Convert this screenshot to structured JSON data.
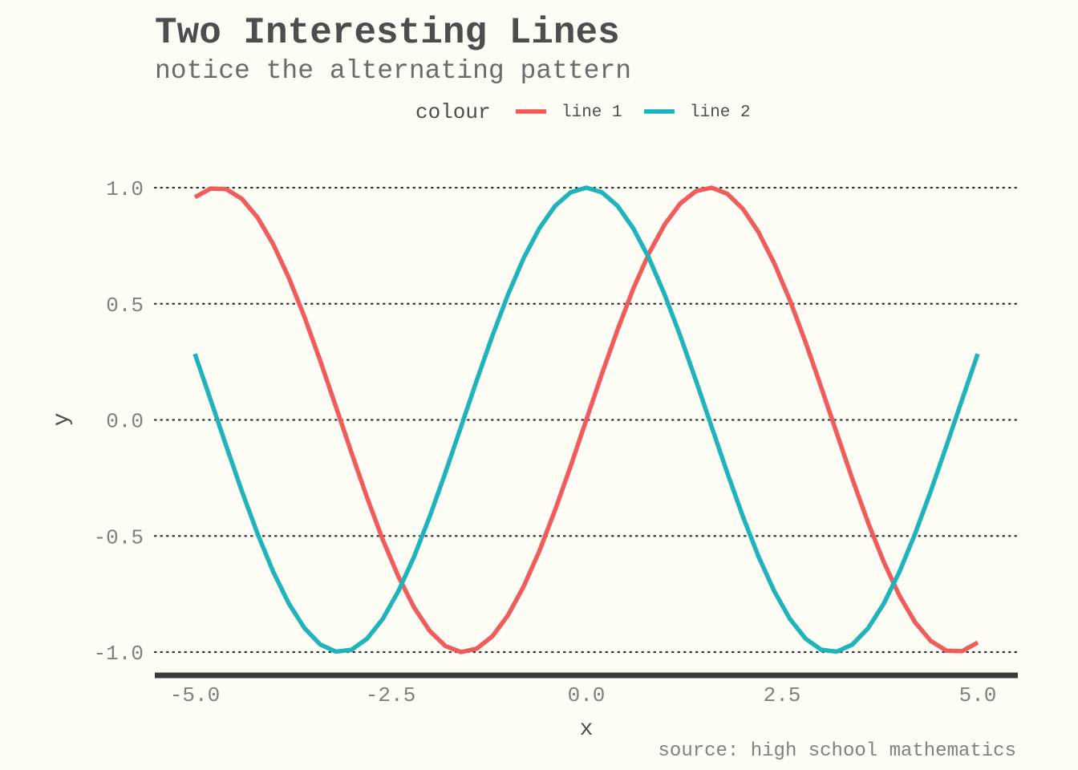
{
  "chart_data": {
    "type": "line",
    "title": "Two Interesting Lines",
    "subtitle": "notice the alternating pattern",
    "caption": "source: high school mathematics",
    "xlabel": "x",
    "ylabel": "y",
    "xlim": [
      -5,
      5
    ],
    "ylim": [
      -1,
      1
    ],
    "x_ticks": [
      -5,
      -2.5,
      0,
      2.5,
      5
    ],
    "x_tick_labels": [
      "-5.0",
      "-2.5",
      "0.0",
      "2.5",
      "5.0"
    ],
    "y_ticks": [
      -1,
      -0.5,
      0,
      0.5,
      1
    ],
    "y_tick_labels": [
      "-1.0",
      "-0.5",
      "0.0",
      "0.5",
      "1.0"
    ],
    "grid": "horizontal dotted",
    "legend": {
      "title": "colour",
      "position": "top",
      "entries": [
        "line 1",
        "line 2"
      ]
    },
    "x": [
      -5.0,
      -4.8,
      -4.6,
      -4.4,
      -4.2,
      -4.0,
      -3.8,
      -3.6,
      -3.4,
      -3.2,
      -3.0,
      -2.8,
      -2.6,
      -2.4,
      -2.2,
      -2.0,
      -1.8,
      -1.6,
      -1.4,
      -1.2,
      -1.0,
      -0.8,
      -0.6,
      -0.4,
      -0.2,
      0.0,
      0.2,
      0.4,
      0.6,
      0.8,
      1.0,
      1.2,
      1.4,
      1.6,
      1.8,
      2.0,
      2.2,
      2.4,
      2.6,
      2.8,
      3.0,
      3.2,
      3.4,
      3.6,
      3.8,
      4.0,
      4.2,
      4.4,
      4.6,
      4.8,
      5.0
    ],
    "series": [
      {
        "name": "line 1",
        "color": "#f05c5c",
        "values": [
          0.959,
          0.996,
          0.994,
          0.952,
          0.872,
          0.757,
          0.612,
          0.443,
          0.256,
          0.058,
          -0.141,
          -0.335,
          -0.516,
          -0.675,
          -0.808,
          -0.909,
          -0.974,
          -1.0,
          -0.985,
          -0.932,
          -0.841,
          -0.717,
          -0.565,
          -0.389,
          -0.199,
          0.0,
          0.199,
          0.389,
          0.565,
          0.717,
          0.841,
          0.932,
          0.985,
          1.0,
          0.974,
          0.909,
          0.808,
          0.675,
          0.516,
          0.335,
          0.141,
          -0.058,
          -0.256,
          -0.443,
          -0.612,
          -0.757,
          -0.872,
          -0.952,
          -0.994,
          -0.996,
          -0.959
        ]
      },
      {
        "name": "line 2",
        "color": "#1fb3bb",
        "values": [
          0.284,
          0.087,
          -0.112,
          -0.307,
          -0.49,
          -0.654,
          -0.791,
          -0.897,
          -0.967,
          -0.998,
          -0.99,
          -0.942,
          -0.857,
          -0.737,
          -0.589,
          -0.416,
          -0.227,
          -0.029,
          0.17,
          0.362,
          0.54,
          0.697,
          0.825,
          0.921,
          0.98,
          1.0,
          0.98,
          0.921,
          0.825,
          0.697,
          0.54,
          0.362,
          0.17,
          -0.029,
          -0.227,
          -0.416,
          -0.589,
          -0.737,
          -0.857,
          -0.942,
          -0.99,
          -0.998,
          -0.967,
          -0.897,
          -0.791,
          -0.654,
          -0.49,
          -0.307,
          -0.112,
          0.087,
          0.284
        ]
      }
    ]
  }
}
